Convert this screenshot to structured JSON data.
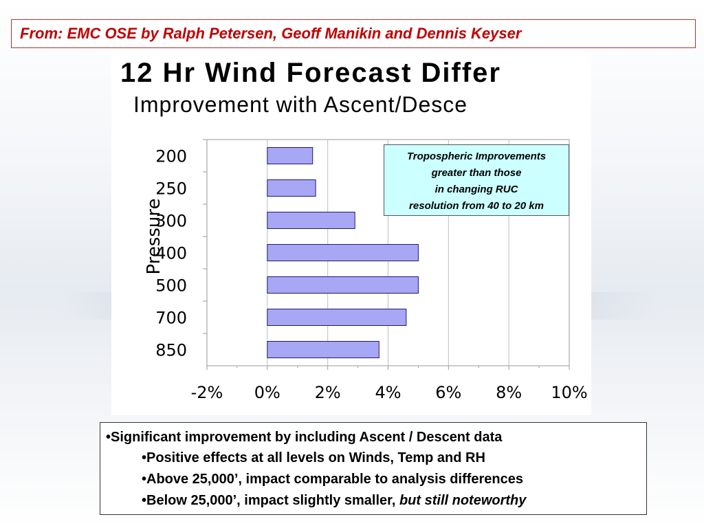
{
  "source": "From:  EMC OSE by Ralph Petersen, Geoff Manikin and Dennis Keyser",
  "chart_data": {
    "type": "bar",
    "orientation": "horizontal",
    "title": "12 Hr Wind Forecast Differ",
    "subtitle": "Improvement with Ascent/Desce",
    "ylabel": "Pressure",
    "xlabel": "",
    "categories": [
      "200",
      "250",
      "300",
      "400",
      "500",
      "700",
      "850"
    ],
    "values": [
      1.5,
      1.6,
      2.9,
      5.0,
      5.0,
      4.6,
      3.7
    ],
    "xlim": [
      -2,
      10
    ],
    "xticks": [
      "-2%",
      "0%",
      "2%",
      "4%",
      "6%",
      "8%",
      "10%"
    ],
    "grid": true,
    "bar_color": "#a7a7f5"
  },
  "annotation": {
    "lines": [
      "Tropospheric Improvements",
      "greater than those",
      "in changing RUC",
      "resolution from 40 to 20 km"
    ]
  },
  "bullets": {
    "b1": "•Significant improvement by including Ascent / Descent data",
    "b2": "•Positive effects at all levels on Winds, Temp and RH",
    "b3": "•Above 25,000’, impact comparable to analysis differences",
    "b4_main": "•Below 25,000’, impact slightly smaller, ",
    "b4_emph": "but still noteworthy"
  }
}
